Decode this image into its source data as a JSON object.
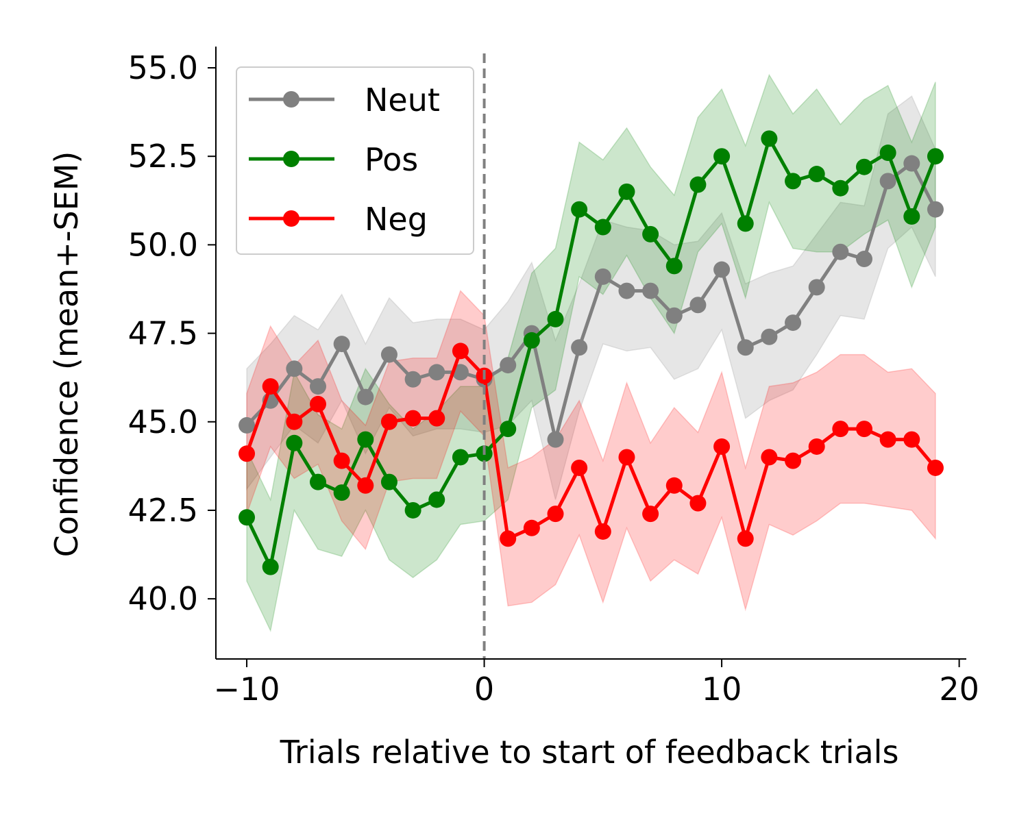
{
  "chart_data": {
    "type": "line",
    "xlabel": "Trials relative to start of feedback trials",
    "ylabel": "Confidence (mean+-SEM)",
    "xlim": [
      -11.3,
      20.3
    ],
    "ylim": [
      38.3,
      55.6
    ],
    "xticks": [
      -10,
      0,
      10,
      20
    ],
    "xtick_labels": [
      "−10",
      "0",
      "10",
      "20"
    ],
    "yticks": [
      40.0,
      42.5,
      45.0,
      47.5,
      50.0,
      52.5,
      55.0
    ],
    "ytick_labels": [
      "40.0",
      "42.5",
      "45.0",
      "47.5",
      "50.0",
      "52.5",
      "55.0"
    ],
    "vline": {
      "x": 0,
      "style": "dashed",
      "color": "#808080"
    },
    "legend": {
      "position": "top-left"
    },
    "grid": false,
    "x": [
      -10,
      -9,
      -8,
      -7,
      -6,
      -5,
      -4,
      -3,
      -2,
      -1,
      0,
      1,
      2,
      3,
      4,
      5,
      6,
      7,
      8,
      9,
      10,
      11,
      12,
      13,
      14,
      15,
      16,
      17,
      18,
      19
    ],
    "series": [
      {
        "name": "Neut",
        "color": "#808080",
        "values": [
          44.9,
          45.6,
          46.5,
          46.0,
          47.2,
          45.7,
          46.9,
          46.2,
          46.4,
          46.4,
          46.2,
          46.6,
          47.5,
          44.5,
          47.1,
          49.1,
          48.7,
          48.7,
          48.0,
          48.3,
          49.3,
          47.1,
          47.4,
          47.8,
          48.8,
          49.8,
          49.6,
          51.8,
          52.3,
          51.0
        ],
        "upper": [
          46.5,
          47.2,
          48.0,
          47.6,
          48.6,
          47.2,
          48.5,
          47.8,
          47.9,
          47.9,
          47.6,
          48.4,
          49.5,
          47.3,
          48.9,
          50.7,
          50.5,
          50.4,
          50.0,
          50.1,
          50.9,
          48.9,
          49.2,
          49.4,
          50.3,
          51.2,
          51.1,
          53.7,
          54.2,
          52.7
        ],
        "lower": [
          43.1,
          44.0,
          44.9,
          44.4,
          45.6,
          44.1,
          45.4,
          44.6,
          44.8,
          44.8,
          44.7,
          44.9,
          45.6,
          42.8,
          45.3,
          47.2,
          47.0,
          47.1,
          46.2,
          46.5,
          47.6,
          45.1,
          45.6,
          45.9,
          46.9,
          48.0,
          47.9,
          49.9,
          50.5,
          49.1
        ]
      },
      {
        "name": "Pos",
        "color": "#008000",
        "values": [
          42.3,
          40.9,
          44.4,
          43.3,
          43.0,
          44.5,
          43.3,
          42.5,
          42.8,
          44.0,
          44.1,
          44.8,
          47.3,
          47.9,
          51.0,
          50.5,
          51.5,
          50.3,
          49.4,
          51.7,
          52.5,
          50.6,
          53.0,
          51.8,
          52.0,
          51.6,
          52.2,
          52.6,
          50.8,
          52.5
        ],
        "upper": [
          44.2,
          42.8,
          46.4,
          45.2,
          44.8,
          46.5,
          45.5,
          44.8,
          45.3,
          46.0,
          46.0,
          46.8,
          49.2,
          49.9,
          52.9,
          52.4,
          53.3,
          52.2,
          51.4,
          53.6,
          54.4,
          52.8,
          54.8,
          53.7,
          54.4,
          53.4,
          54.1,
          54.5,
          52.9,
          54.6
        ],
        "lower": [
          40.5,
          39.1,
          42.5,
          41.4,
          41.2,
          42.5,
          41.1,
          40.6,
          41.1,
          42.1,
          42.2,
          42.8,
          45.4,
          45.9,
          49.1,
          48.6,
          49.7,
          48.5,
          47.5,
          49.8,
          50.6,
          48.5,
          51.2,
          49.9,
          49.8,
          49.8,
          50.3,
          50.7,
          48.8,
          50.5
        ]
      },
      {
        "name": "Neg",
        "color": "#ff0000",
        "values": [
          44.1,
          46.0,
          45.0,
          45.5,
          43.9,
          43.2,
          45.0,
          45.1,
          45.1,
          47.0,
          46.3,
          41.7,
          42.0,
          42.4,
          43.7,
          41.9,
          44.0,
          42.4,
          43.2,
          42.7,
          44.3,
          41.7,
          44.0,
          43.9,
          44.3,
          44.8,
          44.8,
          44.5,
          44.5,
          43.7
        ],
        "upper": [
          45.8,
          47.7,
          46.6,
          47.3,
          45.6,
          44.9,
          46.7,
          46.8,
          46.8,
          48.7,
          48.0,
          43.7,
          44.0,
          44.5,
          45.6,
          43.9,
          46.1,
          44.4,
          45.4,
          44.7,
          46.4,
          43.7,
          46.0,
          46.1,
          46.4,
          46.9,
          46.9,
          46.4,
          46.5,
          45.8
        ],
        "lower": [
          42.4,
          44.3,
          43.4,
          43.8,
          42.2,
          41.4,
          43.3,
          43.4,
          43.4,
          45.3,
          44.6,
          39.8,
          39.9,
          40.4,
          41.8,
          39.9,
          42.0,
          40.5,
          41.1,
          40.7,
          42.3,
          39.7,
          42.1,
          41.8,
          42.2,
          42.7,
          42.7,
          42.6,
          42.5,
          41.7
        ]
      }
    ]
  }
}
